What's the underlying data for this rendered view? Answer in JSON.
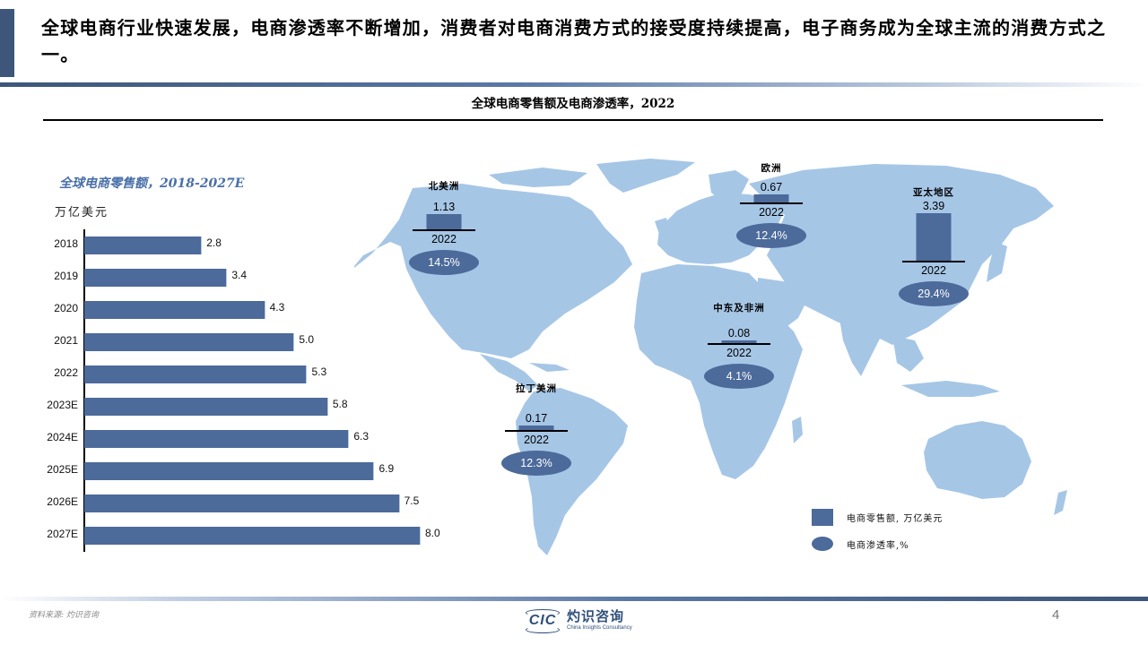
{
  "header": {
    "headline": "全球电商行业快速发展，电商渗透率不断增加，消费者对电商消费方式的接受度持续提高，电子商务成为全球主流的消费方式之一。",
    "subtitle": "全球电商零售额及电商渗透率，2022"
  },
  "bar_chart": {
    "title": "全球电商零售额，2018-2027E",
    "unit": "万亿美元"
  },
  "map": {
    "regions": [
      {
        "name": "北美洲",
        "value": "1.13",
        "year": "2022",
        "penetration": "14.5%"
      },
      {
        "name": "欧洲",
        "value": "0.67",
        "year": "2022",
        "penetration": "12.4%"
      },
      {
        "name": "亚太地区",
        "value": "3.39",
        "year": "2022",
        "penetration": "29.4%"
      },
      {
        "name": "中东及非洲",
        "value": "0.08",
        "year": "2022",
        "penetration": "4.1%"
      },
      {
        "name": "拉丁美洲",
        "value": "0.17",
        "year": "2022",
        "penetration": "12.3%"
      }
    ],
    "legend": {
      "sales": "电商零售额, 万亿美元",
      "penetration": "电商渗透率,%"
    }
  },
  "footer": {
    "source": "资料来源: 灼识咨询",
    "logo_abbr": "CIC",
    "logo_cn": "灼识咨询",
    "logo_en": "China Insights Consultancy",
    "page_number": "4"
  },
  "colors": {
    "bar": "#4c6a9a",
    "map_land": "#a6c6e6",
    "title_accent": "#3d5679",
    "bar_title": "#4a6fa8"
  },
  "chart_data": [
    {
      "type": "bar",
      "orientation": "horizontal",
      "title": "全球电商零售额，2018-2027E",
      "xlabel": "",
      "ylabel": "万亿美元",
      "categories": [
        "2018",
        "2019",
        "2020",
        "2021",
        "2022",
        "2023E",
        "2024E",
        "2025E",
        "2026E",
        "2027E"
      ],
      "values": [
        2.8,
        3.4,
        4.3,
        5.0,
        5.3,
        5.8,
        6.3,
        6.9,
        7.5,
        8.0
      ],
      "labels": [
        "2.8",
        "3.4",
        "4.3",
        "5.0",
        "5.3",
        "5.8",
        "6.3",
        "6.9",
        "7.5",
        "8.0"
      ],
      "grid": false
    },
    {
      "type": "bar",
      "title": "全球电商零售额及电商渗透率，2022",
      "categories": [
        "北美洲",
        "欧洲",
        "亚太地区",
        "中东及非洲",
        "拉丁美洲"
      ],
      "series": [
        {
          "name": "电商零售额, 万亿美元",
          "values": [
            1.13,
            0.67,
            3.39,
            0.08,
            0.17
          ]
        },
        {
          "name": "电商渗透率,%",
          "values": [
            14.5,
            12.4,
            29.4,
            4.1,
            12.3
          ]
        }
      ],
      "year": "2022",
      "legend_position": "bottom-right"
    }
  ]
}
